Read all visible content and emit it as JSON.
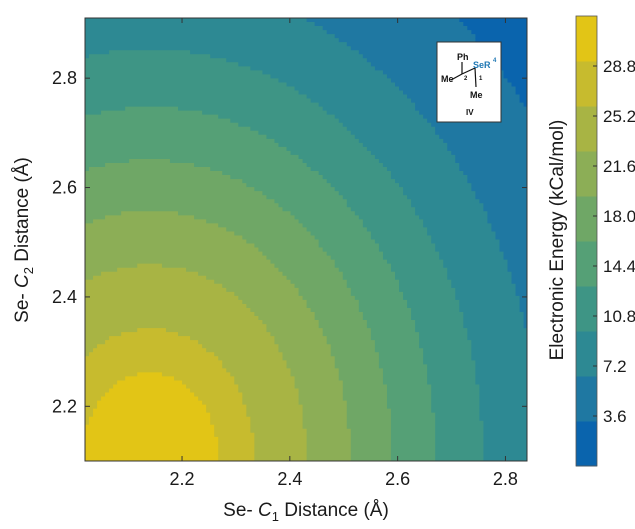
{
  "chart_data": {
    "type": "heatmap",
    "subtype": "filled-contour",
    "xlabel": {
      "prefix": "Se- ",
      "var": "C",
      "sub": "1",
      "suffix": " Distance (Å)"
    },
    "ylabel": {
      "prefix": "Se- ",
      "var": "C",
      "sub": "2",
      "suffix": " Distance (Å)"
    },
    "colorbar_label": "Electronic Energy (kCal/mol)",
    "xlim": [
      2.02,
      2.84
    ],
    "ylim": [
      2.1,
      2.91
    ],
    "x_ticks": [
      "2.2",
      "2.4",
      "2.6",
      "2.8"
    ],
    "y_ticks": [
      "2.2",
      "2.4",
      "2.6",
      "2.8"
    ],
    "x_tick_values": [
      2.2,
      2.4,
      2.6,
      2.8
    ],
    "y_tick_values": [
      2.2,
      2.4,
      2.6,
      2.8
    ],
    "colorbar_ticks": [
      "3.6",
      "7.2",
      "10.8",
      "14.4",
      "18.0",
      "21.6",
      "25.2",
      "28.8"
    ],
    "colorbar_tick_values": [
      3.6,
      7.2,
      10.8,
      14.4,
      18.0,
      21.6,
      25.2,
      28.8
    ],
    "colorbar_range": [
      0,
      32.4
    ],
    "color_levels": [
      "#0a64ad",
      "#1f78a2",
      "#2d8993",
      "#3e9585",
      "#55a076",
      "#6fa766",
      "#8cae56",
      "#a8b444",
      "#c7bb2e",
      "#e2c516"
    ],
    "peak": {
      "x": 2.14,
      "y": 2.11,
      "value": 32.0
    },
    "contour_thresholds": [
      3.6,
      7.2,
      10.8,
      14.4,
      18.0,
      21.6,
      25.2,
      28.8,
      30.6
    ],
    "grid": false,
    "legend": "colorbar-right",
    "inset": {
      "labels": [
        "Ph",
        "SeR",
        "4",
        "Me",
        "2",
        "1",
        "Me",
        "IV"
      ],
      "highlight_color": "#1f78b4"
    }
  }
}
